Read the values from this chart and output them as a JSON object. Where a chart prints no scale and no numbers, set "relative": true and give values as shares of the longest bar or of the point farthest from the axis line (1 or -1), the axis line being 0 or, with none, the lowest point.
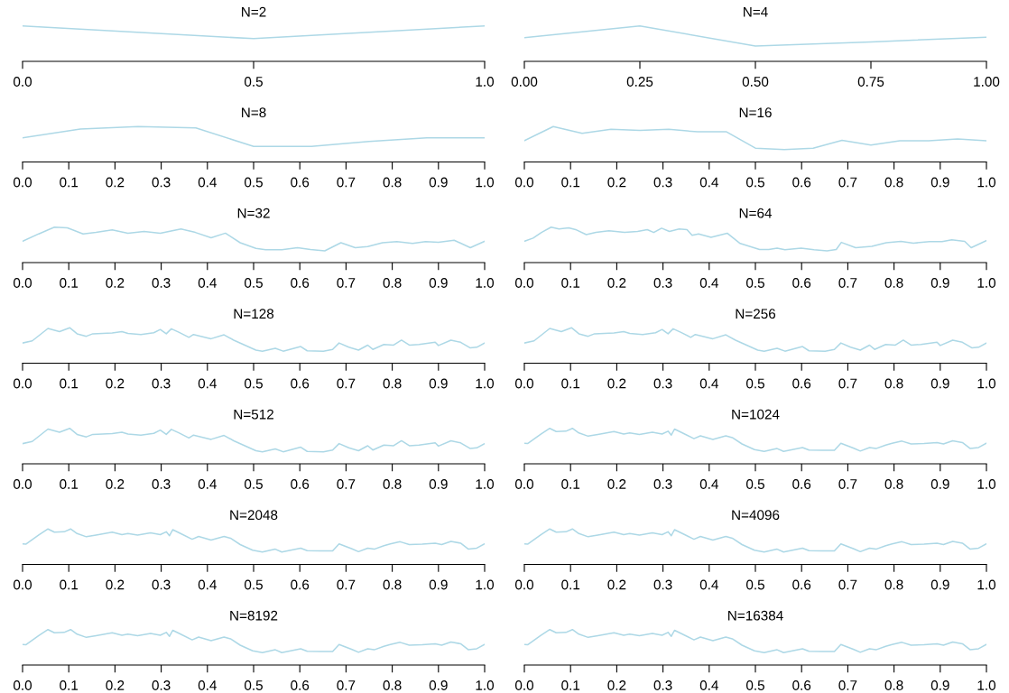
{
  "chart_data": [
    {
      "type": "line",
      "title": "N=2",
      "relative": true,
      "xlim": [
        0,
        1
      ],
      "tick_labels": "x",
      "xticks": [
        {
          "value": 0,
          "label": "0.0"
        },
        {
          "value": 0.5,
          "label": "0.5"
        },
        {
          "value": 1,
          "label": "1.0"
        }
      ],
      "series": [
        {
          "color": "#add8e6",
          "x": [
            0,
            0.5,
            1
          ],
          "values": [
            1,
            0.64,
            1
          ]
        }
      ]
    },
    {
      "type": "line",
      "title": "N=4",
      "relative": true,
      "xlim": [
        0,
        1
      ],
      "tick_labels": "x",
      "xticks": [
        {
          "value": 0,
          "label": "0.00"
        },
        {
          "value": 0.25,
          "label": "0.25"
        },
        {
          "value": 0.5,
          "label": "0.50"
        },
        {
          "value": 0.75,
          "label": "0.75"
        },
        {
          "value": 1,
          "label": "1.00"
        }
      ],
      "series": [
        {
          "color": "#add8e6",
          "x": [
            0,
            0.25,
            0.5,
            0.75,
            1
          ],
          "values": [
            0.67,
            1,
            0.43,
            0.55,
            0.68
          ]
        }
      ]
    },
    {
      "type": "line",
      "title": "N=8",
      "relative": true,
      "xlim": [
        0,
        1
      ],
      "tick_labels": "x",
      "xticks": [
        {
          "value": 0,
          "label": "0.0"
        },
        {
          "value": 0.1,
          "label": "0.1"
        },
        {
          "value": 0.2,
          "label": "0.2"
        },
        {
          "value": 0.3,
          "label": "0.3"
        },
        {
          "value": 0.4,
          "label": "0.4"
        },
        {
          "value": 0.5,
          "label": "0.5"
        },
        {
          "value": 0.6,
          "label": "0.6"
        },
        {
          "value": 0.7,
          "label": "0.7"
        },
        {
          "value": 0.8,
          "label": "0.8"
        },
        {
          "value": 0.9,
          "label": "0.9"
        },
        {
          "value": 1,
          "label": "1.0"
        }
      ],
      "series": [
        {
          "color": "#add8e6",
          "x": [
            0,
            0.125,
            0.25,
            0.375,
            0.5,
            0.625,
            0.75,
            0.875,
            1
          ],
          "values": [
            0.68,
            0.93,
            1,
            0.96,
            0.44,
            0.44,
            0.58,
            0.68,
            0.68
          ]
        }
      ]
    },
    {
      "type": "line",
      "title": "N=16",
      "relative": true,
      "xlim": [
        0,
        1
      ],
      "tick_labels": "x",
      "xticks": [
        {
          "value": 0,
          "label": "0.0"
        },
        {
          "value": 0.1,
          "label": "0.1"
        },
        {
          "value": 0.2,
          "label": "0.2"
        },
        {
          "value": 0.3,
          "label": "0.3"
        },
        {
          "value": 0.4,
          "label": "0.4"
        },
        {
          "value": 0.5,
          "label": "0.5"
        },
        {
          "value": 0.6,
          "label": "0.6"
        },
        {
          "value": 0.7,
          "label": "0.7"
        },
        {
          "value": 0.8,
          "label": "0.8"
        },
        {
          "value": 0.9,
          "label": "0.9"
        },
        {
          "value": 1,
          "label": "1.0"
        }
      ],
      "series": [
        {
          "color": "#add8e6",
          "x": [
            0,
            0.0625,
            0.125,
            0.1875,
            0.25,
            0.3125,
            0.375,
            0.4375,
            0.5,
            0.5625,
            0.625,
            0.6875,
            0.75,
            0.8125,
            0.875,
            0.9375,
            1
          ],
          "values": [
            0.6,
            1,
            0.81,
            0.92,
            0.89,
            0.92,
            0.85,
            0.85,
            0.39,
            0.35,
            0.39,
            0.61,
            0.48,
            0.6,
            0.6,
            0.65,
            0.6
          ]
        }
      ]
    },
    {
      "type": "line",
      "title": "N=32",
      "relative": true,
      "xlim": [
        0,
        1
      ],
      "tick_labels": "x",
      "xticks": [
        {
          "value": 0,
          "label": "0.0"
        },
        {
          "value": 0.1,
          "label": "0.1"
        },
        {
          "value": 0.2,
          "label": "0.2"
        },
        {
          "value": 0.3,
          "label": "0.3"
        },
        {
          "value": 0.4,
          "label": "0.4"
        },
        {
          "value": 0.5,
          "label": "0.5"
        },
        {
          "value": 0.6,
          "label": "0.6"
        },
        {
          "value": 0.7,
          "label": "0.7"
        },
        {
          "value": 0.8,
          "label": "0.8"
        },
        {
          "value": 0.9,
          "label": "0.9"
        },
        {
          "value": 1,
          "label": "1.0"
        }
      ],
      "series": [
        {
          "color": "#add8e6",
          "x": [
            0,
            0.035,
            0.069,
            0.097,
            0.131,
            0.159,
            0.194,
            0.228,
            0.263,
            0.298,
            0.343,
            0.374,
            0.408,
            0.439,
            0.471,
            0.505,
            0.526,
            0.561,
            0.595,
            0.623,
            0.654,
            0.689,
            0.72,
            0.747,
            0.779,
            0.81,
            0.844,
            0.872,
            0.9,
            0.934,
            0.969,
            1
          ],
          "values": [
            0.6,
            0.81,
            1,
            0.98,
            0.81,
            0.85,
            0.92,
            0.83,
            0.88,
            0.83,
            0.95,
            0.85,
            0.7,
            0.83,
            0.56,
            0.4,
            0.36,
            0.36,
            0.42,
            0.37,
            0.33,
            0.56,
            0.42,
            0.45,
            0.56,
            0.59,
            0.54,
            0.59,
            0.57,
            0.63,
            0.42,
            0.6
          ]
        }
      ]
    },
    {
      "type": "line",
      "title": "N=64",
      "relative": true,
      "xlim": [
        0,
        1
      ],
      "tick_labels": "x",
      "xticks": [
        {
          "value": 0,
          "label": "0.0"
        },
        {
          "value": 0.1,
          "label": "0.1"
        },
        {
          "value": 0.2,
          "label": "0.2"
        },
        {
          "value": 0.3,
          "label": "0.3"
        },
        {
          "value": 0.4,
          "label": "0.4"
        },
        {
          "value": 0.5,
          "label": "0.5"
        },
        {
          "value": 0.6,
          "label": "0.6"
        },
        {
          "value": 0.7,
          "label": "0.7"
        },
        {
          "value": 0.8,
          "label": "0.8"
        },
        {
          "value": 0.9,
          "label": "0.9"
        },
        {
          "value": 1,
          "label": "1.0"
        }
      ],
      "series": [
        {
          "color": "#add8e6",
          "x": [
            0,
            0.019,
            0.037,
            0.058,
            0.075,
            0.096,
            0.113,
            0.134,
            0.155,
            0.183,
            0.217,
            0.245,
            0.266,
            0.28,
            0.297,
            0.314,
            0.335,
            0.352,
            0.363,
            0.377,
            0.404,
            0.439,
            0.467,
            0.509,
            0.529,
            0.547,
            0.564,
            0.599,
            0.627,
            0.655,
            0.675,
            0.686,
            0.717,
            0.752,
            0.783,
            0.815,
            0.842,
            0.877,
            0.904,
            0.925,
            0.953,
            0.967,
            1
          ],
          "values": [
            0.6,
            0.69,
            0.85,
            1,
            0.95,
            0.98,
            0.92,
            0.79,
            0.85,
            0.9,
            0.85,
            0.88,
            0.93,
            0.85,
            0.97,
            0.88,
            0.95,
            0.93,
            0.77,
            0.81,
            0.71,
            0.83,
            0.54,
            0.37,
            0.37,
            0.41,
            0.36,
            0.41,
            0.36,
            0.33,
            0.37,
            0.57,
            0.42,
            0.46,
            0.56,
            0.6,
            0.55,
            0.59,
            0.59,
            0.64,
            0.6,
            0.42,
            0.62
          ]
        }
      ]
    },
    {
      "type": "line",
      "title": "N=128",
      "relative": true,
      "xlim": [
        0,
        1
      ],
      "tick_labels": "x",
      "xticks": [
        {
          "value": 0,
          "label": "0.0"
        },
        {
          "value": 0.1,
          "label": "0.1"
        },
        {
          "value": 0.2,
          "label": "0.2"
        },
        {
          "value": 0.3,
          "label": "0.3"
        },
        {
          "value": 0.4,
          "label": "0.4"
        },
        {
          "value": 0.5,
          "label": "0.5"
        },
        {
          "value": 0.6,
          "label": "0.6"
        },
        {
          "value": 0.7,
          "label": "0.7"
        },
        {
          "value": 0.8,
          "label": "0.8"
        },
        {
          "value": 0.9,
          "label": "0.9"
        },
        {
          "value": 1,
          "label": "1.0"
        }
      ],
      "series": [
        {
          "color": "#add8e6",
          "x": [
            0,
            0.021,
            0.055,
            0.08,
            0.102,
            0.118,
            0.138,
            0.152,
            0.194,
            0.215,
            0.228,
            0.256,
            0.284,
            0.298,
            0.311,
            0.322,
            0.339,
            0.36,
            0.37,
            0.408,
            0.436,
            0.457,
            0.505,
            0.519,
            0.547,
            0.564,
            0.602,
            0.616,
            0.651,
            0.671,
            0.685,
            0.706,
            0.727,
            0.747,
            0.758,
            0.782,
            0.803,
            0.82,
            0.837,
            0.858,
            0.893,
            0.9,
            0.927,
            0.948,
            0.969,
            0.983,
            1
          ],
          "values": [
            0.57,
            0.63,
            0.98,
            0.89,
            1,
            0.83,
            0.76,
            0.83,
            0.85,
            0.89,
            0.84,
            0.81,
            0.86,
            0.95,
            0.83,
            0.97,
            0.87,
            0.73,
            0.81,
            0.69,
            0.8,
            0.65,
            0.37,
            0.34,
            0.42,
            0.34,
            0.47,
            0.35,
            0.34,
            0.39,
            0.57,
            0.45,
            0.37,
            0.51,
            0.39,
            0.53,
            0.51,
            0.65,
            0.51,
            0.53,
            0.59,
            0.5,
            0.65,
            0.59,
            0.43,
            0.45,
            0.57
          ]
        }
      ]
    },
    {
      "type": "line",
      "title": "N=256",
      "relative": true,
      "xlim": [
        0,
        1
      ],
      "tick_labels": "x",
      "xticks": [
        {
          "value": 0,
          "label": "0.0"
        },
        {
          "value": 0.1,
          "label": "0.1"
        },
        {
          "value": 0.2,
          "label": "0.2"
        },
        {
          "value": 0.3,
          "label": "0.3"
        },
        {
          "value": 0.4,
          "label": "0.4"
        },
        {
          "value": 0.5,
          "label": "0.5"
        },
        {
          "value": 0.6,
          "label": "0.6"
        },
        {
          "value": 0.7,
          "label": "0.7"
        },
        {
          "value": 0.8,
          "label": "0.8"
        },
        {
          "value": 0.9,
          "label": "0.9"
        },
        {
          "value": 1,
          "label": "1.0"
        }
      ],
      "series": [
        {
          "color": "#add8e6",
          "x": [
            0,
            0.021,
            0.055,
            0.08,
            0.102,
            0.118,
            0.138,
            0.152,
            0.194,
            0.215,
            0.228,
            0.256,
            0.284,
            0.298,
            0.311,
            0.322,
            0.339,
            0.36,
            0.37,
            0.408,
            0.436,
            0.457,
            0.505,
            0.519,
            0.547,
            0.564,
            0.602,
            0.616,
            0.651,
            0.671,
            0.685,
            0.706,
            0.727,
            0.747,
            0.758,
            0.782,
            0.803,
            0.82,
            0.837,
            0.858,
            0.893,
            0.9,
            0.927,
            0.948,
            0.969,
            0.983,
            1
          ],
          "values": [
            0.57,
            0.63,
            0.98,
            0.89,
            1,
            0.83,
            0.76,
            0.83,
            0.85,
            0.89,
            0.84,
            0.81,
            0.86,
            0.95,
            0.83,
            0.97,
            0.87,
            0.73,
            0.81,
            0.69,
            0.8,
            0.65,
            0.37,
            0.34,
            0.42,
            0.34,
            0.47,
            0.35,
            0.34,
            0.39,
            0.57,
            0.45,
            0.37,
            0.51,
            0.39,
            0.53,
            0.51,
            0.65,
            0.51,
            0.53,
            0.59,
            0.5,
            0.65,
            0.59,
            0.43,
            0.45,
            0.57
          ]
        }
      ]
    },
    {
      "type": "line",
      "title": "N=512",
      "relative": true,
      "xlim": [
        0,
        1
      ],
      "tick_labels": "x",
      "xticks": [
        {
          "value": 0,
          "label": "0.0"
        },
        {
          "value": 0.1,
          "label": "0.1"
        },
        {
          "value": 0.2,
          "label": "0.2"
        },
        {
          "value": 0.3,
          "label": "0.3"
        },
        {
          "value": 0.4,
          "label": "0.4"
        },
        {
          "value": 0.5,
          "label": "0.5"
        },
        {
          "value": 0.6,
          "label": "0.6"
        },
        {
          "value": 0.7,
          "label": "0.7"
        },
        {
          "value": 0.8,
          "label": "0.8"
        },
        {
          "value": 0.9,
          "label": "0.9"
        },
        {
          "value": 1,
          "label": "1.0"
        }
      ],
      "series": [
        {
          "color": "#add8e6",
          "x": [
            0,
            0.021,
            0.055,
            0.08,
            0.102,
            0.118,
            0.138,
            0.152,
            0.194,
            0.215,
            0.228,
            0.256,
            0.284,
            0.298,
            0.311,
            0.322,
            0.339,
            0.36,
            0.37,
            0.408,
            0.436,
            0.457,
            0.505,
            0.519,
            0.547,
            0.564,
            0.602,
            0.616,
            0.651,
            0.671,
            0.685,
            0.706,
            0.727,
            0.747,
            0.758,
            0.782,
            0.803,
            0.82,
            0.837,
            0.858,
            0.893,
            0.9,
            0.927,
            0.948,
            0.969,
            0.983,
            1
          ],
          "values": [
            0.57,
            0.63,
            0.98,
            0.89,
            1,
            0.83,
            0.76,
            0.83,
            0.85,
            0.89,
            0.84,
            0.81,
            0.86,
            0.95,
            0.83,
            0.97,
            0.87,
            0.73,
            0.81,
            0.69,
            0.8,
            0.65,
            0.37,
            0.34,
            0.42,
            0.34,
            0.47,
            0.35,
            0.34,
            0.39,
            0.57,
            0.45,
            0.37,
            0.51,
            0.39,
            0.53,
            0.51,
            0.65,
            0.51,
            0.53,
            0.59,
            0.5,
            0.65,
            0.59,
            0.43,
            0.45,
            0.57
          ]
        }
      ]
    },
    {
      "type": "line",
      "title": "N=1024",
      "relative": true,
      "xlim": [
        0,
        1
      ],
      "tick_labels": "x",
      "xticks": [
        {
          "value": 0,
          "label": "0.0"
        },
        {
          "value": 0.1,
          "label": "0.1"
        },
        {
          "value": 0.2,
          "label": "0.2"
        },
        {
          "value": 0.3,
          "label": "0.3"
        },
        {
          "value": 0.4,
          "label": "0.4"
        },
        {
          "value": 0.5,
          "label": "0.5"
        },
        {
          "value": 0.6,
          "label": "0.6"
        },
        {
          "value": 0.7,
          "label": "0.7"
        },
        {
          "value": 0.8,
          "label": "0.8"
        },
        {
          "value": 0.9,
          "label": "0.9"
        },
        {
          "value": 1,
          "label": "1.0"
        }
      ],
      "series": [
        {
          "color": "#add8e6",
          "x": [
            0,
            0.007,
            0.035,
            0.055,
            0.069,
            0.09,
            0.104,
            0.118,
            0.138,
            0.159,
            0.194,
            0.215,
            0.228,
            0.249,
            0.277,
            0.298,
            0.311,
            0.318,
            0.325,
            0.339,
            0.367,
            0.381,
            0.408,
            0.436,
            0.45,
            0.471,
            0.498,
            0.519,
            0.547,
            0.561,
            0.602,
            0.616,
            0.644,
            0.671,
            0.685,
            0.713,
            0.727,
            0.747,
            0.761,
            0.782,
            0.796,
            0.817,
            0.837,
            0.865,
            0.893,
            0.907,
            0.927,
            0.948,
            0.965,
            0.983,
            1
          ],
          "values": [
            0.58,
            0.57,
            0.83,
            1,
            0.91,
            0.92,
            1,
            0.87,
            0.78,
            0.83,
            0.91,
            0.84,
            0.87,
            0.83,
            0.89,
            0.84,
            0.92,
            0.81,
            0.98,
            0.89,
            0.71,
            0.79,
            0.69,
            0.79,
            0.74,
            0.56,
            0.4,
            0.35,
            0.43,
            0.35,
            0.46,
            0.39,
            0.38,
            0.38,
            0.58,
            0.44,
            0.36,
            0.46,
            0.43,
            0.53,
            0.58,
            0.64,
            0.56,
            0.57,
            0.6,
            0.56,
            0.65,
            0.6,
            0.43,
            0.46,
            0.58
          ]
        }
      ]
    },
    {
      "type": "line",
      "title": "N=2048",
      "relative": true,
      "xlim": [
        0,
        1
      ],
      "tick_labels": "x",
      "xticks": [
        {
          "value": 0,
          "label": "0.0"
        },
        {
          "value": 0.1,
          "label": "0.1"
        },
        {
          "value": 0.2,
          "label": "0.2"
        },
        {
          "value": 0.3,
          "label": "0.3"
        },
        {
          "value": 0.4,
          "label": "0.4"
        },
        {
          "value": 0.5,
          "label": "0.5"
        },
        {
          "value": 0.6,
          "label": "0.6"
        },
        {
          "value": 0.7,
          "label": "0.7"
        },
        {
          "value": 0.8,
          "label": "0.8"
        },
        {
          "value": 0.9,
          "label": "0.9"
        },
        {
          "value": 1,
          "label": "1.0"
        }
      ],
      "series": [
        {
          "color": "#add8e6",
          "x": [
            0,
            0.007,
            0.035,
            0.055,
            0.069,
            0.09,
            0.104,
            0.118,
            0.138,
            0.159,
            0.194,
            0.215,
            0.228,
            0.249,
            0.277,
            0.298,
            0.311,
            0.318,
            0.325,
            0.339,
            0.367,
            0.381,
            0.408,
            0.436,
            0.45,
            0.471,
            0.498,
            0.519,
            0.547,
            0.561,
            0.602,
            0.616,
            0.644,
            0.671,
            0.685,
            0.713,
            0.727,
            0.747,
            0.761,
            0.782,
            0.796,
            0.817,
            0.837,
            0.865,
            0.893,
            0.907,
            0.927,
            0.948,
            0.965,
            0.983,
            1
          ],
          "values": [
            0.58,
            0.57,
            0.83,
            1,
            0.91,
            0.92,
            1,
            0.87,
            0.78,
            0.83,
            0.91,
            0.84,
            0.87,
            0.83,
            0.89,
            0.84,
            0.92,
            0.81,
            0.98,
            0.89,
            0.71,
            0.79,
            0.69,
            0.79,
            0.74,
            0.56,
            0.4,
            0.35,
            0.43,
            0.35,
            0.46,
            0.39,
            0.38,
            0.38,
            0.58,
            0.44,
            0.36,
            0.46,
            0.43,
            0.53,
            0.58,
            0.64,
            0.56,
            0.57,
            0.6,
            0.56,
            0.65,
            0.6,
            0.43,
            0.46,
            0.58
          ]
        }
      ]
    },
    {
      "type": "line",
      "title": "N=4096",
      "relative": true,
      "xlim": [
        0,
        1
      ],
      "tick_labels": "x",
      "xticks": [
        {
          "value": 0,
          "label": "0.0"
        },
        {
          "value": 0.1,
          "label": "0.1"
        },
        {
          "value": 0.2,
          "label": "0.2"
        },
        {
          "value": 0.3,
          "label": "0.3"
        },
        {
          "value": 0.4,
          "label": "0.4"
        },
        {
          "value": 0.5,
          "label": "0.5"
        },
        {
          "value": 0.6,
          "label": "0.6"
        },
        {
          "value": 0.7,
          "label": "0.7"
        },
        {
          "value": 0.8,
          "label": "0.8"
        },
        {
          "value": 0.9,
          "label": "0.9"
        },
        {
          "value": 1,
          "label": "1.0"
        }
      ],
      "series": [
        {
          "color": "#add8e6",
          "x": [
            0,
            0.007,
            0.035,
            0.055,
            0.069,
            0.09,
            0.104,
            0.118,
            0.138,
            0.159,
            0.194,
            0.215,
            0.228,
            0.249,
            0.277,
            0.298,
            0.311,
            0.318,
            0.325,
            0.339,
            0.367,
            0.381,
            0.408,
            0.436,
            0.45,
            0.471,
            0.498,
            0.519,
            0.547,
            0.561,
            0.602,
            0.616,
            0.644,
            0.671,
            0.685,
            0.713,
            0.727,
            0.747,
            0.761,
            0.782,
            0.796,
            0.817,
            0.837,
            0.865,
            0.893,
            0.907,
            0.927,
            0.948,
            0.965,
            0.983,
            1
          ],
          "values": [
            0.58,
            0.57,
            0.83,
            1,
            0.91,
            0.92,
            1,
            0.87,
            0.78,
            0.83,
            0.91,
            0.84,
            0.87,
            0.83,
            0.89,
            0.84,
            0.92,
            0.81,
            0.98,
            0.89,
            0.71,
            0.79,
            0.69,
            0.79,
            0.74,
            0.56,
            0.4,
            0.35,
            0.43,
            0.35,
            0.46,
            0.39,
            0.38,
            0.38,
            0.58,
            0.44,
            0.36,
            0.46,
            0.43,
            0.53,
            0.58,
            0.64,
            0.56,
            0.57,
            0.6,
            0.56,
            0.65,
            0.6,
            0.43,
            0.46,
            0.58
          ]
        }
      ]
    },
    {
      "type": "line",
      "title": "N=8192",
      "relative": true,
      "xlim": [
        0,
        1
      ],
      "tick_labels": "x",
      "xticks": [
        {
          "value": 0,
          "label": "0.0"
        },
        {
          "value": 0.1,
          "label": "0.1"
        },
        {
          "value": 0.2,
          "label": "0.2"
        },
        {
          "value": 0.3,
          "label": "0.3"
        },
        {
          "value": 0.4,
          "label": "0.4"
        },
        {
          "value": 0.5,
          "label": "0.5"
        },
        {
          "value": 0.6,
          "label": "0.6"
        },
        {
          "value": 0.7,
          "label": "0.7"
        },
        {
          "value": 0.8,
          "label": "0.8"
        },
        {
          "value": 0.9,
          "label": "0.9"
        },
        {
          "value": 1,
          "label": "1.0"
        }
      ],
      "series": [
        {
          "color": "#add8e6",
          "x": [
            0,
            0.007,
            0.035,
            0.055,
            0.069,
            0.09,
            0.104,
            0.118,
            0.138,
            0.159,
            0.194,
            0.215,
            0.228,
            0.249,
            0.277,
            0.298,
            0.311,
            0.318,
            0.325,
            0.339,
            0.367,
            0.381,
            0.408,
            0.436,
            0.45,
            0.471,
            0.498,
            0.519,
            0.547,
            0.561,
            0.602,
            0.616,
            0.644,
            0.671,
            0.685,
            0.713,
            0.727,
            0.747,
            0.761,
            0.782,
            0.796,
            0.817,
            0.837,
            0.865,
            0.893,
            0.907,
            0.927,
            0.948,
            0.965,
            0.983,
            1
          ],
          "values": [
            0.58,
            0.57,
            0.83,
            1,
            0.91,
            0.92,
            1,
            0.87,
            0.78,
            0.83,
            0.91,
            0.84,
            0.87,
            0.83,
            0.89,
            0.84,
            0.92,
            0.81,
            0.98,
            0.89,
            0.71,
            0.79,
            0.69,
            0.79,
            0.74,
            0.56,
            0.4,
            0.35,
            0.43,
            0.35,
            0.46,
            0.39,
            0.38,
            0.38,
            0.58,
            0.44,
            0.36,
            0.46,
            0.43,
            0.53,
            0.58,
            0.64,
            0.56,
            0.57,
            0.6,
            0.56,
            0.65,
            0.6,
            0.43,
            0.46,
            0.58
          ]
        }
      ]
    },
    {
      "type": "line",
      "title": "N=16384",
      "relative": true,
      "xlim": [
        0,
        1
      ],
      "tick_labels": "x",
      "xticks": [
        {
          "value": 0,
          "label": "0.0"
        },
        {
          "value": 0.1,
          "label": "0.1"
        },
        {
          "value": 0.2,
          "label": "0.2"
        },
        {
          "value": 0.3,
          "label": "0.3"
        },
        {
          "value": 0.4,
          "label": "0.4"
        },
        {
          "value": 0.5,
          "label": "0.5"
        },
        {
          "value": 0.6,
          "label": "0.6"
        },
        {
          "value": 0.7,
          "label": "0.7"
        },
        {
          "value": 0.8,
          "label": "0.8"
        },
        {
          "value": 0.9,
          "label": "0.9"
        },
        {
          "value": 1,
          "label": "1.0"
        }
      ],
      "series": [
        {
          "color": "#add8e6",
          "x": [
            0,
            0.007,
            0.035,
            0.055,
            0.069,
            0.09,
            0.104,
            0.118,
            0.138,
            0.159,
            0.194,
            0.215,
            0.228,
            0.249,
            0.277,
            0.298,
            0.311,
            0.318,
            0.325,
            0.339,
            0.367,
            0.381,
            0.408,
            0.436,
            0.45,
            0.471,
            0.498,
            0.519,
            0.547,
            0.561,
            0.602,
            0.616,
            0.644,
            0.671,
            0.685,
            0.713,
            0.727,
            0.747,
            0.761,
            0.782,
            0.796,
            0.817,
            0.837,
            0.865,
            0.893,
            0.907,
            0.927,
            0.948,
            0.965,
            0.983,
            1
          ],
          "values": [
            0.58,
            0.57,
            0.83,
            1,
            0.91,
            0.92,
            1,
            0.87,
            0.78,
            0.83,
            0.91,
            0.84,
            0.87,
            0.83,
            0.89,
            0.84,
            0.92,
            0.81,
            0.98,
            0.89,
            0.71,
            0.79,
            0.69,
            0.79,
            0.74,
            0.56,
            0.4,
            0.35,
            0.43,
            0.35,
            0.46,
            0.39,
            0.38,
            0.38,
            0.58,
            0.44,
            0.36,
            0.46,
            0.43,
            0.53,
            0.58,
            0.64,
            0.56,
            0.57,
            0.6,
            0.56,
            0.65,
            0.6,
            0.43,
            0.46,
            0.58
          ]
        }
      ]
    }
  ]
}
